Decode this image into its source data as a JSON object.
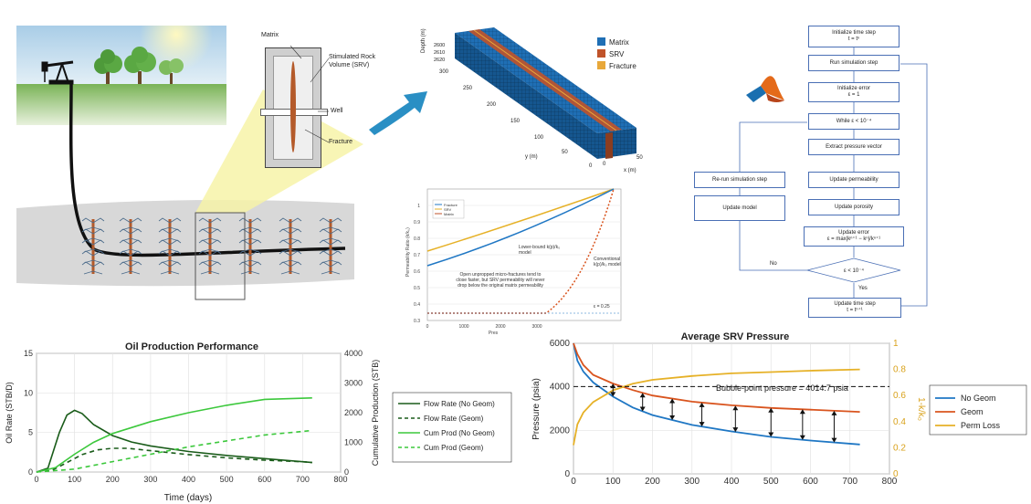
{
  "reservoir": {
    "callout_matrix": "Matrix",
    "callout_srv": "Stimulated Rock Volume (SRV)",
    "callout_well": "Well",
    "callout_fracture": "Fracture"
  },
  "grid3d": {
    "legend": [
      "Matrix",
      "SRV",
      "Fracture"
    ],
    "legend_colors": [
      "#1f6fb5",
      "#c0532a",
      "#e8a83a"
    ],
    "z_axis_label": "Depth (m)",
    "z_ticks": [
      "2600",
      "2610",
      "2620"
    ],
    "y_axis_label": "y (m)",
    "y_ticks": [
      "300",
      "250",
      "200",
      "150",
      "100",
      "50",
      "0"
    ],
    "x_axis_label": "x (m)",
    "x_ticks": [
      "0",
      "50"
    ]
  },
  "perm_chart": {
    "ylabel": "Permeability Ratio (k/k₀)",
    "xlabel": "Pres",
    "legend": [
      "Fracture",
      "SRV",
      "Matrix"
    ],
    "y_ticks": [
      "0.3",
      "0.4",
      "0.5",
      "0.6",
      "0.7",
      "0.8",
      "0.9",
      "1"
    ],
    "x_ticks": [
      "0",
      "1000",
      "2000",
      "3000"
    ],
    "annot_lower": "Lower-bound k(p)/k₀ model",
    "annot_conv": "Conventional k(p)/k₀ model",
    "annot_open": "Open unpropped micro-fractures tend to close faster, but SRV permeability will never drop below the original matrix permeability",
    "annot_eps": "ε = 0.25"
  },
  "flowchart": {
    "init_time": [
      "Initialize time step",
      "t = tⁿ"
    ],
    "run_sim": "Run simulation step",
    "init_error": [
      "Initialize error",
      "ε = 1"
    ],
    "while": "While ε < 10⁻⁴",
    "extract": "Extract pressure vector",
    "update_perm": "Update permeability",
    "update_poro": "Update porosity",
    "update_error": [
      "Update error",
      "ε = max|kⁿ⁺¹ − kⁿ|/kⁿ⁺¹"
    ],
    "decision": "ε < 10⁻⁴",
    "update_time": [
      "Update time step",
      "t = tⁿ⁺¹"
    ],
    "rerun": "Re-run simulation step",
    "update_model": "Update model",
    "no_label": "No",
    "yes_label": "Yes"
  },
  "chart_data": [
    {
      "type": "line",
      "title": "Oil Production Performance",
      "xlabel": "Time (days)",
      "ylabel": "Oil Rate (STB/D)",
      "y2label": "Cumulative Production (STB)",
      "xlim": [
        0,
        800
      ],
      "ylim": [
        0,
        15
      ],
      "y2lim": [
        0,
        4000
      ],
      "x_ticks": [
        0,
        100,
        200,
        300,
        400,
        500,
        600,
        700,
        800
      ],
      "y_ticks": [
        0,
        5,
        10,
        15
      ],
      "y2_ticks": [
        0,
        1000,
        2000,
        3000,
        4000
      ],
      "legend_position": "right",
      "grid": true,
      "series": [
        {
          "name": "Flow Rate (No Geom)",
          "axis": "left",
          "color": "#1a5c1a",
          "dash": "solid",
          "x": [
            0,
            30,
            60,
            80,
            100,
            120,
            150,
            200,
            250,
            300,
            400,
            500,
            600,
            700,
            725
          ],
          "y": [
            0,
            0.5,
            5.0,
            7.2,
            7.8,
            7.4,
            6.0,
            4.6,
            3.8,
            3.3,
            2.6,
            2.1,
            1.7,
            1.3,
            1.2
          ]
        },
        {
          "name": "Flow Rate (Geom)",
          "axis": "left",
          "color": "#1a5c1a",
          "dash": "dashed",
          "x": [
            0,
            40,
            80,
            120,
            160,
            200,
            240,
            300,
            400,
            500,
            600,
            700,
            725
          ],
          "y": [
            0,
            0.2,
            1.2,
            2.2,
            2.8,
            3.0,
            3.0,
            2.7,
            2.2,
            1.8,
            1.5,
            1.3,
            1.2
          ]
        },
        {
          "name": "Cum Prod (No Geom)",
          "axis": "right",
          "color": "#3cc83c",
          "dash": "solid",
          "x": [
            0,
            50,
            100,
            150,
            200,
            300,
            400,
            500,
            600,
            725
          ],
          "y": [
            0,
            150,
            600,
            1000,
            1300,
            1700,
            2000,
            2250,
            2450,
            2500
          ]
        },
        {
          "name": "Cum Prod (Geom)",
          "axis": "right",
          "color": "#3cc83c",
          "dash": "dashed",
          "x": [
            0,
            100,
            200,
            300,
            400,
            500,
            600,
            725
          ],
          "y": [
            0,
            100,
            350,
            600,
            850,
            1050,
            1250,
            1400
          ]
        }
      ]
    },
    {
      "type": "line",
      "title": "Average SRV Pressure",
      "xlabel": "",
      "ylabel": "Pressure (psia)",
      "y2label": "1-k/k₀",
      "xlim": [
        0,
        800
      ],
      "ylim": [
        0,
        6000
      ],
      "y2lim": [
        0,
        1
      ],
      "x_ticks": [
        0,
        100,
        200,
        300,
        400,
        500,
        600,
        700,
        800
      ],
      "y_ticks": [
        0,
        2000,
        4000,
        6000
      ],
      "y2_ticks": [
        0,
        0.2,
        0.4,
        0.6,
        0.8,
        1
      ],
      "legend_position": "right",
      "grid": true,
      "annotation": "Bubble-point pressure = 4014.7 psia",
      "bubble_point": 4014.7,
      "arrows_x": [
        100,
        175,
        250,
        325,
        410,
        500,
        580,
        660
      ],
      "series": [
        {
          "name": "No Geom",
          "axis": "left",
          "color": "#1f77c4",
          "x": [
            0,
            10,
            25,
            50,
            100,
            150,
            200,
            300,
            400,
            500,
            600,
            725
          ],
          "y": [
            6000,
            5200,
            4700,
            4200,
            3550,
            3050,
            2700,
            2250,
            1950,
            1700,
            1530,
            1350
          ]
        },
        {
          "name": "Geom",
          "axis": "left",
          "color": "#d9541e",
          "x": [
            0,
            10,
            25,
            50,
            100,
            150,
            200,
            300,
            400,
            500,
            600,
            725
          ],
          "y": [
            6000,
            5500,
            5000,
            4550,
            4150,
            3850,
            3600,
            3320,
            3150,
            3030,
            2950,
            2850
          ]
        },
        {
          "name": "Perm Loss",
          "axis": "right",
          "color": "#e6b127",
          "x": [
            0,
            10,
            25,
            50,
            100,
            150,
            200,
            300,
            400,
            500,
            600,
            725
          ],
          "y": [
            0.22,
            0.38,
            0.47,
            0.55,
            0.64,
            0.69,
            0.72,
            0.75,
            0.77,
            0.78,
            0.79,
            0.8
          ]
        }
      ]
    }
  ]
}
